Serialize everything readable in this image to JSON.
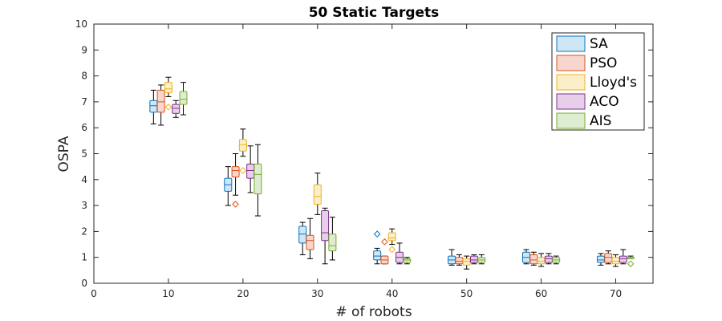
{
  "chart_data": {
    "type": "box",
    "title": "50 Static Targets",
    "xlabel": "# of robots",
    "ylabel": "OSPA",
    "xlim": [
      0,
      75
    ],
    "ylim": [
      0,
      10
    ],
    "xticks": [
      0,
      10,
      20,
      30,
      40,
      50,
      60,
      70
    ],
    "yticks": [
      0,
      1,
      2,
      3,
      4,
      5,
      6,
      7,
      8,
      9,
      10
    ],
    "legend_position": "top-right",
    "grid": false,
    "groups": [
      10,
      20,
      30,
      40,
      50,
      60,
      70
    ],
    "series": [
      {
        "name": "SA",
        "fill": "#cfe7f5",
        "stroke": "#0b72bd",
        "offset": -2,
        "boxes": [
          {
            "group": 10,
            "whislo": 6.15,
            "q1": 6.6,
            "med": 6.85,
            "q3": 7.05,
            "whishi": 7.45,
            "fliers": []
          },
          {
            "group": 20,
            "whislo": 3.0,
            "q1": 3.55,
            "med": 3.8,
            "q3": 4.05,
            "whishi": 4.5,
            "fliers": []
          },
          {
            "group": 30,
            "whislo": 1.1,
            "q1": 1.55,
            "med": 1.9,
            "q3": 2.2,
            "whishi": 2.35,
            "fliers": []
          },
          {
            "group": 40,
            "whislo": 0.75,
            "q1": 0.9,
            "med": 1.05,
            "q3": 1.25,
            "whishi": 1.35,
            "fliers": [
              1.9
            ]
          },
          {
            "group": 50,
            "whislo": 0.7,
            "q1": 0.75,
            "med": 0.9,
            "q3": 1.05,
            "whishi": 1.3,
            "fliers": []
          },
          {
            "group": 60,
            "whislo": 0.75,
            "q1": 0.8,
            "med": 1.0,
            "q3": 1.2,
            "whishi": 1.3,
            "fliers": []
          },
          {
            "group": 70,
            "whislo": 0.7,
            "q1": 0.8,
            "med": 0.9,
            "q3": 1.05,
            "whishi": 1.15,
            "fliers": []
          }
        ]
      },
      {
        "name": "PSO",
        "fill": "#f7d7cd",
        "stroke": "#d95319",
        "offset": -1,
        "boxes": [
          {
            "group": 10,
            "whislo": 6.1,
            "q1": 6.6,
            "med": 7.0,
            "q3": 7.45,
            "whishi": 7.65,
            "fliers": []
          },
          {
            "group": 20,
            "whislo": 3.4,
            "q1": 4.1,
            "med": 4.35,
            "q3": 4.5,
            "whishi": 5.0,
            "fliers": [
              3.05
            ]
          },
          {
            "group": 30,
            "whislo": 0.95,
            "q1": 1.3,
            "med": 1.65,
            "q3": 1.85,
            "whishi": 2.5,
            "fliers": []
          },
          {
            "group": 40,
            "whislo": 0.75,
            "q1": 0.75,
            "med": 0.9,
            "q3": 1.05,
            "whishi": 1.05,
            "fliers": [
              1.6
            ]
          },
          {
            "group": 50,
            "whislo": 0.7,
            "q1": 0.75,
            "med": 0.85,
            "q3": 1.0,
            "whishi": 1.1,
            "fliers": []
          },
          {
            "group": 60,
            "whislo": 0.7,
            "q1": 0.75,
            "med": 0.9,
            "q3": 1.1,
            "whishi": 1.2,
            "fliers": []
          },
          {
            "group": 70,
            "whislo": 0.75,
            "q1": 0.8,
            "med": 1.0,
            "q3": 1.15,
            "whishi": 1.25,
            "fliers": []
          }
        ]
      },
      {
        "name": "Lloyd's",
        "fill": "#fbefc9",
        "stroke": "#edb120",
        "offset": 0,
        "boxes": [
          {
            "group": 10,
            "whislo": 7.2,
            "q1": 7.35,
            "med": 7.5,
            "q3": 7.75,
            "whishi": 7.95,
            "fliers": [
              6.8
            ]
          },
          {
            "group": 20,
            "whislo": 4.9,
            "q1": 5.1,
            "med": 5.35,
            "q3": 5.55,
            "whishi": 5.95,
            "fliers": [
              4.35
            ]
          },
          {
            "group": 30,
            "whislo": 2.65,
            "q1": 3.05,
            "med": 3.35,
            "q3": 3.8,
            "whishi": 4.25,
            "fliers": []
          },
          {
            "group": 40,
            "whislo": 1.5,
            "q1": 1.65,
            "med": 1.75,
            "q3": 1.95,
            "whishi": 2.1,
            "fliers": [
              1.3
            ]
          },
          {
            "group": 50,
            "whislo": 0.55,
            "q1": 0.7,
            "med": 0.85,
            "q3": 0.95,
            "whishi": 1.05,
            "fliers": []
          },
          {
            "group": 60,
            "whislo": 0.65,
            "q1": 0.75,
            "med": 0.85,
            "q3": 1.0,
            "whishi": 1.15,
            "fliers": []
          },
          {
            "group": 70,
            "whislo": 0.65,
            "q1": 0.75,
            "med": 0.85,
            "q3": 1.0,
            "whishi": 1.1,
            "fliers": []
          }
        ]
      },
      {
        "name": "ACO",
        "fill": "#e7cfe9",
        "stroke": "#7e2f8e",
        "offset": 1,
        "boxes": [
          {
            "group": 10,
            "whislo": 6.4,
            "q1": 6.55,
            "med": 6.75,
            "q3": 6.9,
            "whishi": 7.05,
            "fliers": []
          },
          {
            "group": 20,
            "whislo": 3.5,
            "q1": 4.05,
            "med": 4.35,
            "q3": 4.6,
            "whishi": 5.3,
            "fliers": []
          },
          {
            "group": 30,
            "whislo": 0.75,
            "q1": 1.65,
            "med": 1.95,
            "q3": 2.8,
            "whishi": 2.9,
            "fliers": []
          },
          {
            "group": 40,
            "whislo": 0.75,
            "q1": 0.8,
            "med": 1.0,
            "q3": 1.2,
            "whishi": 1.55,
            "fliers": []
          },
          {
            "group": 50,
            "whislo": 0.75,
            "q1": 0.8,
            "med": 0.9,
            "q3": 1.05,
            "whishi": 1.1,
            "fliers": []
          },
          {
            "group": 60,
            "whislo": 0.75,
            "q1": 0.8,
            "med": 0.95,
            "q3": 1.05,
            "whishi": 1.15,
            "fliers": []
          },
          {
            "group": 70,
            "whislo": 0.75,
            "q1": 0.8,
            "med": 0.95,
            "q3": 1.05,
            "whishi": 1.3,
            "fliers": []
          }
        ]
      },
      {
        "name": "AIS",
        "fill": "#deecd1",
        "stroke": "#77ac30",
        "offset": 2,
        "boxes": [
          {
            "group": 10,
            "whislo": 6.5,
            "q1": 6.9,
            "med": 7.1,
            "q3": 7.4,
            "whishi": 7.75,
            "fliers": []
          },
          {
            "group": 20,
            "whislo": 2.6,
            "q1": 3.45,
            "med": 4.2,
            "q3": 4.6,
            "whishi": 5.35,
            "fliers": []
          },
          {
            "group": 30,
            "whislo": 0.9,
            "q1": 1.25,
            "med": 1.45,
            "q3": 1.9,
            "whishi": 2.55,
            "fliers": []
          },
          {
            "group": 40,
            "whislo": 0.75,
            "q1": 0.8,
            "med": 0.9,
            "q3": 0.95,
            "whishi": 1.0,
            "fliers": []
          },
          {
            "group": 50,
            "whislo": 0.75,
            "q1": 0.8,
            "med": 0.9,
            "q3": 1.0,
            "whishi": 1.1,
            "fliers": []
          },
          {
            "group": 60,
            "whislo": 0.75,
            "q1": 0.8,
            "med": 0.9,
            "q3": 1.0,
            "whishi": 1.05,
            "fliers": []
          },
          {
            "group": 70,
            "whislo": 0.95,
            "q1": 0.95,
            "med": 1.0,
            "q3": 1.0,
            "whishi": 1.05,
            "fliers": [
              0.75
            ]
          }
        ]
      }
    ]
  }
}
